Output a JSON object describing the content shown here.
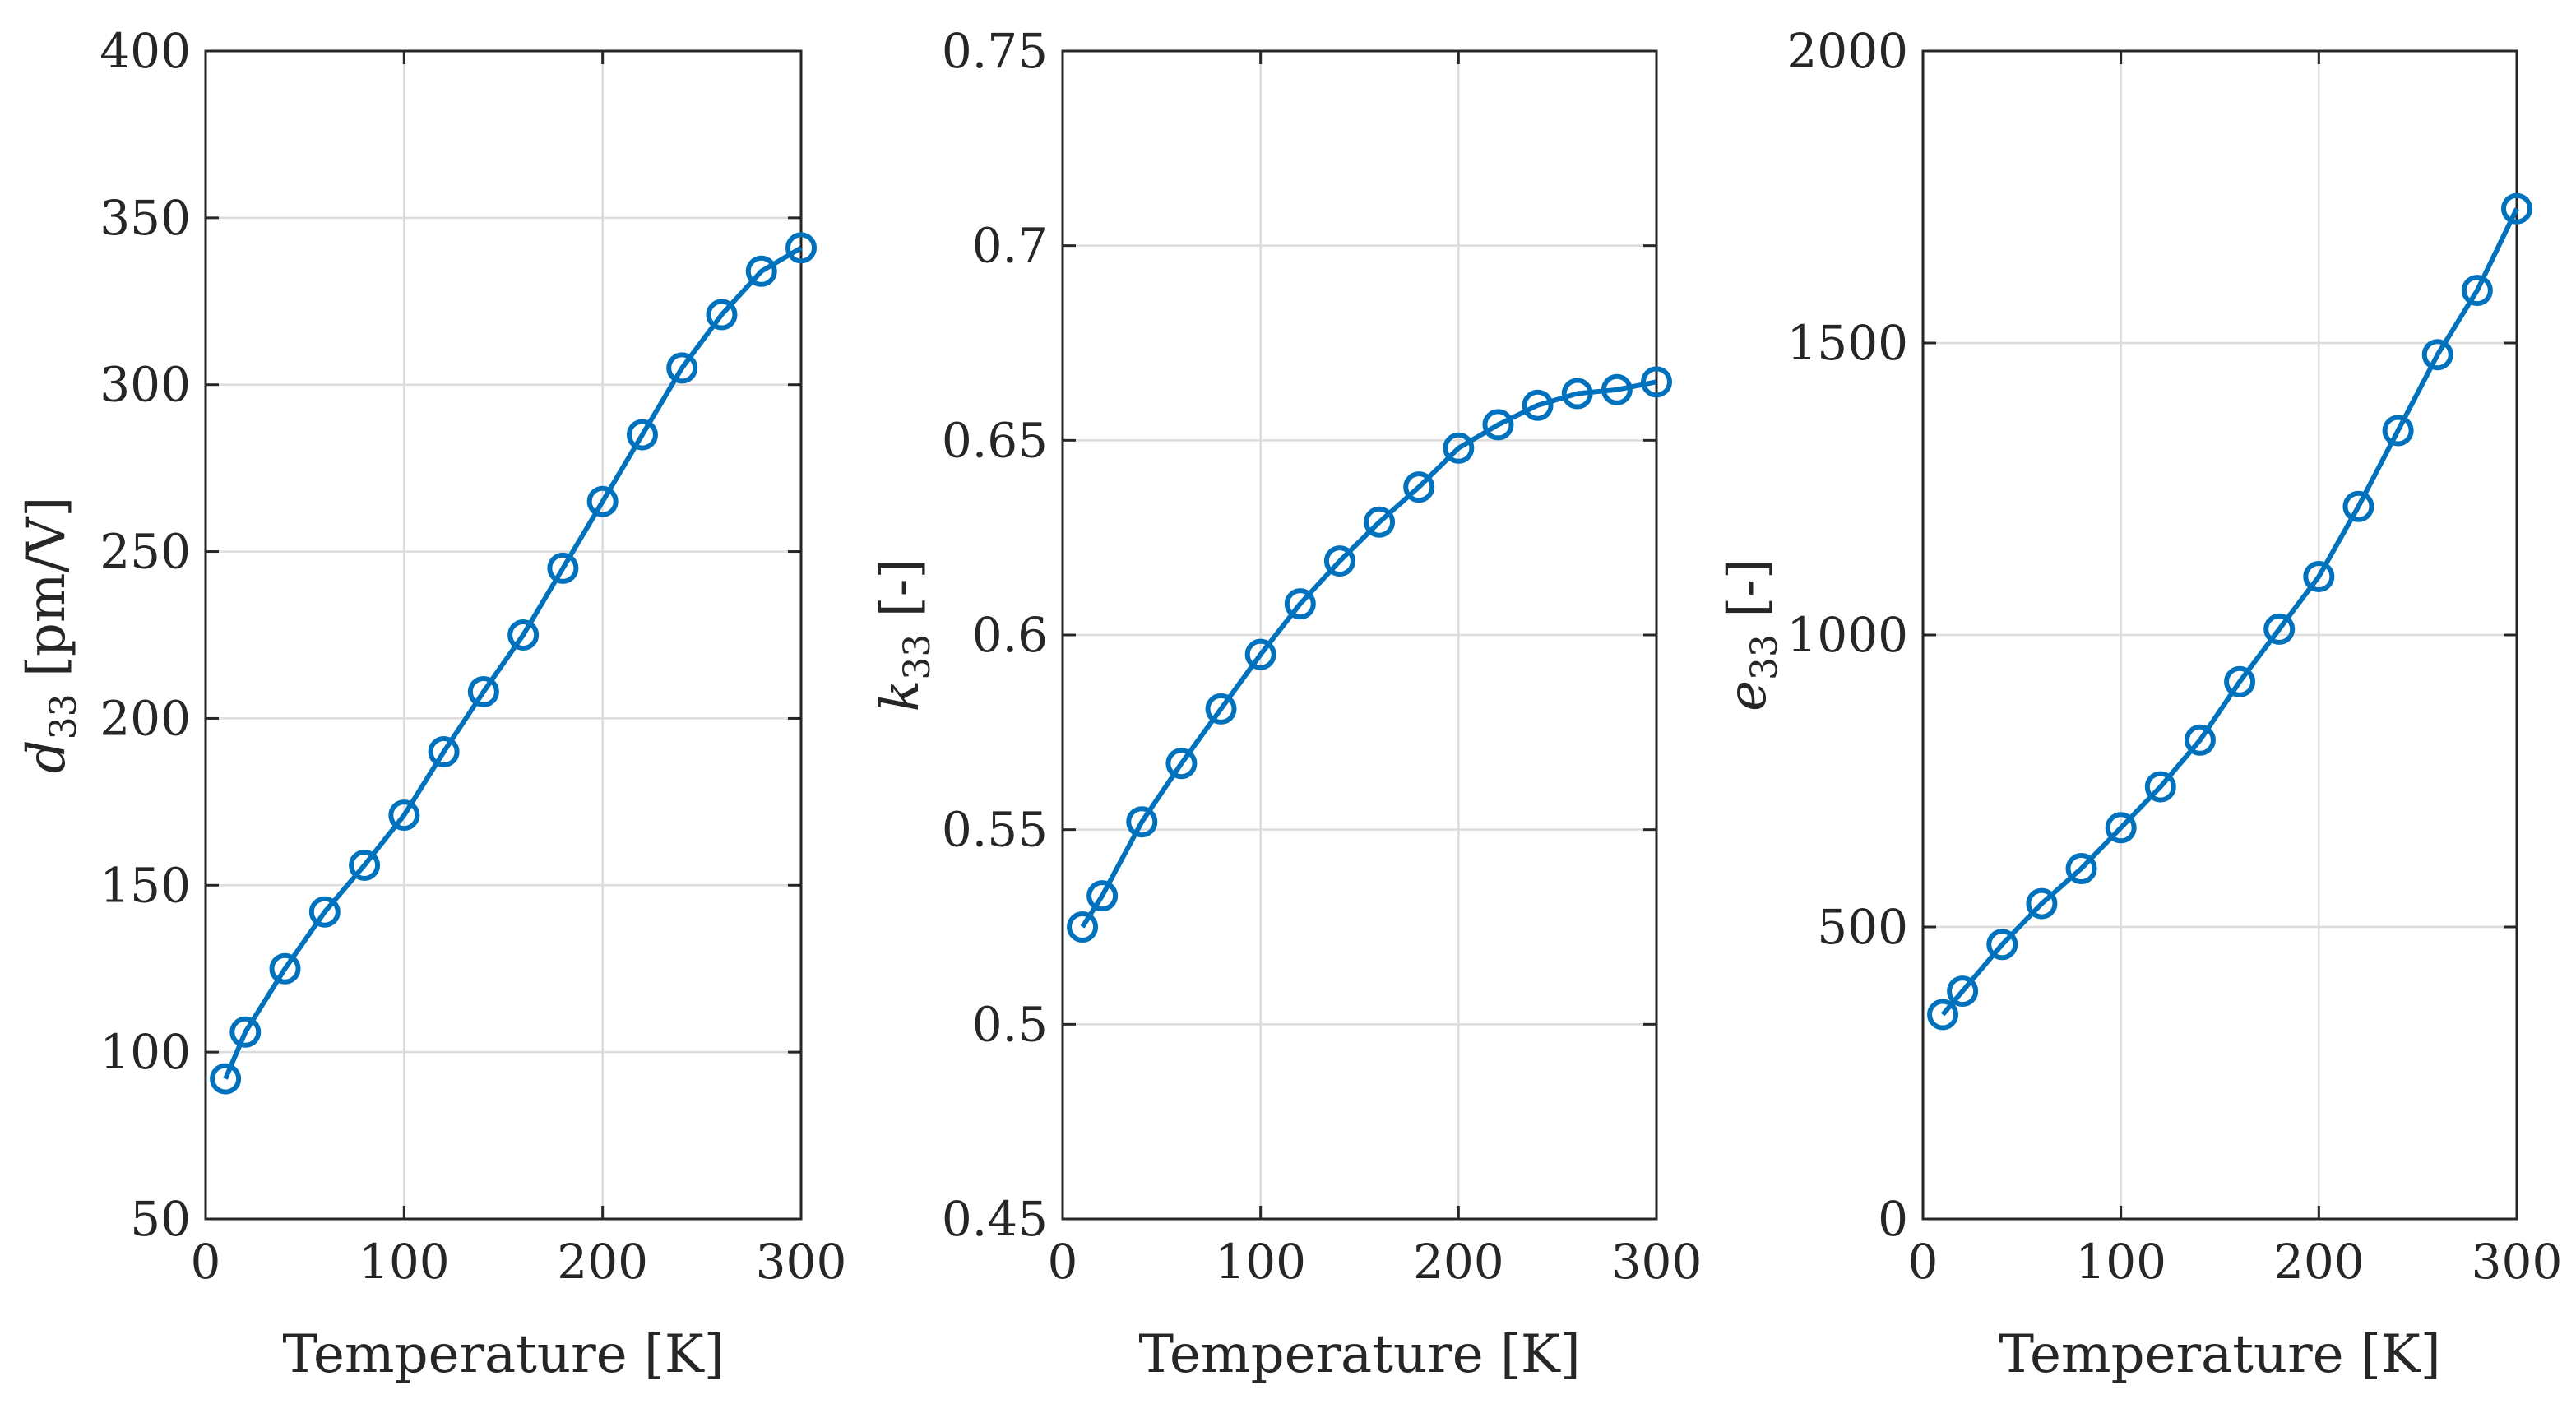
{
  "chart_data": [
    {
      "type": "line",
      "id": "d33",
      "xlabel": "Temperature [K]",
      "ylabel_symbol": "d",
      "ylabel_sub": "33",
      "ylabel_unit": " [pm/V]",
      "xlim": [
        0,
        300
      ],
      "ylim": [
        50,
        400
      ],
      "xticks": [
        0,
        100,
        200,
        300
      ],
      "yticks": [
        50,
        100,
        150,
        200,
        250,
        300,
        350,
        400
      ],
      "grid": true,
      "color": "#0072BD",
      "series": [
        {
          "name": "d33",
          "x": [
            10,
            20,
            40,
            60,
            80,
            100,
            120,
            140,
            160,
            180,
            200,
            220,
            240,
            260,
            280,
            300
          ],
          "y": [
            92,
            106,
            125,
            142,
            156,
            171,
            190,
            208,
            225,
            245,
            265,
            285,
            305,
            321,
            334,
            341
          ]
        }
      ]
    },
    {
      "type": "line",
      "id": "k33",
      "xlabel": "Temperature [K]",
      "ylabel_symbol": "k",
      "ylabel_sub": "33",
      "ylabel_unit": " [-]",
      "xlim": [
        0,
        300
      ],
      "ylim": [
        0.45,
        0.75
      ],
      "xticks": [
        0,
        100,
        200,
        300
      ],
      "yticks": [
        0.45,
        0.5,
        0.55,
        0.6,
        0.65,
        0.7,
        0.75
      ],
      "ytick_labels": [
        "0.45",
        "0.5",
        "0.55",
        "0.6",
        "0.65",
        "0.7",
        "0.75"
      ],
      "grid": true,
      "color": "#0072BD",
      "series": [
        {
          "name": "k33",
          "x": [
            10,
            20,
            40,
            60,
            80,
            100,
            120,
            140,
            160,
            180,
            200,
            220,
            240,
            260,
            280,
            300
          ],
          "y": [
            0.525,
            0.533,
            0.552,
            0.567,
            0.581,
            0.595,
            0.608,
            0.619,
            0.629,
            0.638,
            0.648,
            0.654,
            0.659,
            0.662,
            0.663,
            0.665
          ]
        }
      ]
    },
    {
      "type": "line",
      "id": "e33",
      "xlabel": "Temperature [K]",
      "ylabel_symbol": "e",
      "ylabel_sub": "33",
      "ylabel_unit": " [-]",
      "xlim": [
        0,
        300
      ],
      "ylim": [
        0,
        2000
      ],
      "xticks": [
        0,
        100,
        200,
        300
      ],
      "yticks": [
        0,
        500,
        1000,
        1500,
        2000
      ],
      "grid": true,
      "color": "#0072BD",
      "series": [
        {
          "name": "e33",
          "x": [
            10,
            20,
            40,
            60,
            80,
            100,
            120,
            140,
            160,
            180,
            200,
            220,
            240,
            260,
            280,
            300
          ],
          "y": [
            350,
            390,
            470,
            540,
            600,
            670,
            740,
            820,
            920,
            1010,
            1100,
            1220,
            1350,
            1480,
            1590,
            1730
          ]
        }
      ]
    }
  ]
}
